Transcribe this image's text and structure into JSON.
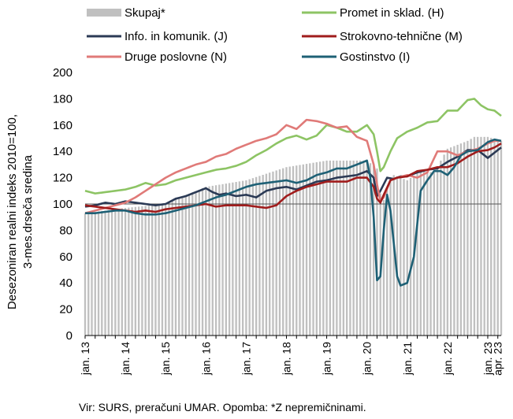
{
  "chart_data": {
    "type": "line",
    "ylabel": [
      "Desezoniran realni indeks 2010=100,",
      "3-mes.drseča sredina"
    ],
    "ylim": [
      0,
      200
    ],
    "yticks": [
      0,
      20,
      40,
      60,
      80,
      100,
      120,
      140,
      160,
      180,
      200
    ],
    "reference_line": 100,
    "x_months": 125,
    "x_start": "2013-01",
    "xtick_labels": [
      {
        "label": "jan. 13",
        "month_index": 0
      },
      {
        "label": "jan. 14",
        "month_index": 12
      },
      {
        "label": "jan. 15",
        "month_index": 24
      },
      {
        "label": "jan. 16",
        "month_index": 36
      },
      {
        "label": "jan. 17",
        "month_index": 48
      },
      {
        "label": "jan. 18",
        "month_index": 60
      },
      {
        "label": "jan. 19",
        "month_index": 72
      },
      {
        "label": "jan. 20",
        "month_index": 84
      },
      {
        "label": "jan. 21",
        "month_index": 96
      },
      {
        "label": "jan. 22",
        "month_index": 108
      },
      {
        "label": "jan. 23",
        "month_index": 120
      },
      {
        "label": "apr. 23",
        "month_index": 123
      }
    ],
    "bars": {
      "name": "Skupaj*",
      "color": "#c0c0c0",
      "anchors": [
        [
          0,
          93
        ],
        [
          12,
          97
        ],
        [
          24,
          100
        ],
        [
          36,
          113
        ],
        [
          48,
          118
        ],
        [
          60,
          128
        ],
        [
          72,
          133
        ],
        [
          84,
          133
        ],
        [
          87,
          127
        ],
        [
          88,
          108
        ],
        [
          89,
          103
        ],
        [
          90,
          112
        ],
        [
          92,
          122
        ],
        [
          96,
          118
        ],
        [
          100,
          125
        ],
        [
          104,
          124
        ],
        [
          108,
          142
        ],
        [
          114,
          148
        ],
        [
          116,
          151
        ],
        [
          120,
          151
        ],
        [
          124,
          148
        ]
      ]
    },
    "series": [
      {
        "name": "Promet in sklad. (H)",
        "color": "#8dc464",
        "anchors": [
          [
            0,
            110
          ],
          [
            3,
            108
          ],
          [
            6,
            109
          ],
          [
            9,
            110
          ],
          [
            12,
            111
          ],
          [
            15,
            113
          ],
          [
            18,
            116
          ],
          [
            21,
            114
          ],
          [
            24,
            115
          ],
          [
            27,
            118
          ],
          [
            30,
            120
          ],
          [
            33,
            122
          ],
          [
            36,
            124
          ],
          [
            39,
            126
          ],
          [
            42,
            127
          ],
          [
            45,
            129
          ],
          [
            48,
            132
          ],
          [
            51,
            137
          ],
          [
            54,
            141
          ],
          [
            57,
            146
          ],
          [
            60,
            150
          ],
          [
            63,
            152
          ],
          [
            66,
            149
          ],
          [
            69,
            152
          ],
          [
            72,
            160
          ],
          [
            75,
            158
          ],
          [
            78,
            155
          ],
          [
            81,
            155
          ],
          [
            84,
            160
          ],
          [
            86,
            153
          ],
          [
            87,
            140
          ],
          [
            88,
            125
          ],
          [
            89,
            128
          ],
          [
            91,
            140
          ],
          [
            93,
            150
          ],
          [
            96,
            155
          ],
          [
            99,
            158
          ],
          [
            102,
            162
          ],
          [
            105,
            163
          ],
          [
            108,
            171
          ],
          [
            111,
            171
          ],
          [
            114,
            179
          ],
          [
            116,
            180
          ],
          [
            118,
            175
          ],
          [
            120,
            172
          ],
          [
            122,
            171
          ],
          [
            124,
            167
          ]
        ]
      },
      {
        "name": "Info. in komunik. (J)",
        "color": "#2b3a55",
        "anchors": [
          [
            0,
            98
          ],
          [
            3,
            99
          ],
          [
            6,
            101
          ],
          [
            9,
            100
          ],
          [
            12,
            102
          ],
          [
            15,
            101
          ],
          [
            18,
            100
          ],
          [
            21,
            99
          ],
          [
            24,
            100
          ],
          [
            27,
            104
          ],
          [
            30,
            106
          ],
          [
            33,
            109
          ],
          [
            36,
            112
          ],
          [
            38,
            109
          ],
          [
            40,
            107
          ],
          [
            42,
            108
          ],
          [
            45,
            106
          ],
          [
            48,
            107
          ],
          [
            51,
            105
          ],
          [
            54,
            110
          ],
          [
            57,
            112
          ],
          [
            60,
            113
          ],
          [
            63,
            111
          ],
          [
            66,
            114
          ],
          [
            69,
            117
          ],
          [
            72,
            118
          ],
          [
            75,
            120
          ],
          [
            78,
            121
          ],
          [
            81,
            122
          ],
          [
            84,
            125
          ],
          [
            86,
            120
          ],
          [
            87,
            106
          ],
          [
            88,
            110
          ],
          [
            90,
            120
          ],
          [
            92,
            119
          ],
          [
            94,
            121
          ],
          [
            96,
            121
          ],
          [
            99,
            124
          ],
          [
            102,
            126
          ],
          [
            105,
            127
          ],
          [
            108,
            132
          ],
          [
            111,
            136
          ],
          [
            114,
            141
          ],
          [
            117,
            141
          ],
          [
            120,
            135
          ],
          [
            122,
            139
          ],
          [
            124,
            143
          ]
        ]
      },
      {
        "name": "Druge poslovne (N)",
        "color": "#e07a78",
        "anchors": [
          [
            0,
            93
          ],
          [
            3,
            95
          ],
          [
            6,
            97
          ],
          [
            9,
            99
          ],
          [
            12,
            101
          ],
          [
            15,
            105
          ],
          [
            18,
            110
          ],
          [
            21,
            115
          ],
          [
            24,
            120
          ],
          [
            27,
            124
          ],
          [
            30,
            127
          ],
          [
            33,
            130
          ],
          [
            36,
            132
          ],
          [
            39,
            136
          ],
          [
            42,
            138
          ],
          [
            45,
            142
          ],
          [
            48,
            145
          ],
          [
            51,
            148
          ],
          [
            54,
            150
          ],
          [
            57,
            153
          ],
          [
            60,
            160
          ],
          [
            63,
            157
          ],
          [
            66,
            164
          ],
          [
            69,
            163
          ],
          [
            72,
            161
          ],
          [
            75,
            158
          ],
          [
            78,
            159
          ],
          [
            81,
            151
          ],
          [
            84,
            148
          ],
          [
            86,
            130
          ],
          [
            87,
            115
          ],
          [
            88,
            102
          ],
          [
            89,
            105
          ],
          [
            91,
            118
          ],
          [
            93,
            120
          ],
          [
            96,
            122
          ],
          [
            99,
            120
          ],
          [
            102,
            124
          ],
          [
            105,
            140
          ],
          [
            108,
            140
          ],
          [
            111,
            137
          ],
          [
            114,
            140
          ],
          [
            117,
            142
          ],
          [
            120,
            146
          ],
          [
            122,
            148
          ],
          [
            124,
            148
          ]
        ]
      },
      {
        "name": "Strokovno-tehnične (M)",
        "color": "#a01c1c",
        "anchors": [
          [
            0,
            99
          ],
          [
            3,
            98
          ],
          [
            6,
            97
          ],
          [
            9,
            96
          ],
          [
            12,
            95
          ],
          [
            15,
            94
          ],
          [
            18,
            95
          ],
          [
            21,
            94
          ],
          [
            24,
            96
          ],
          [
            27,
            97
          ],
          [
            30,
            98
          ],
          [
            33,
            99
          ],
          [
            36,
            100
          ],
          [
            39,
            98
          ],
          [
            42,
            99
          ],
          [
            45,
            99
          ],
          [
            48,
            99
          ],
          [
            51,
            98
          ],
          [
            54,
            97
          ],
          [
            57,
            99
          ],
          [
            60,
            106
          ],
          [
            63,
            110
          ],
          [
            66,
            113
          ],
          [
            69,
            115
          ],
          [
            72,
            117
          ],
          [
            75,
            117
          ],
          [
            78,
            117
          ],
          [
            81,
            120
          ],
          [
            84,
            120
          ],
          [
            86,
            113
          ],
          [
            87,
            104
          ],
          [
            88,
            101
          ],
          [
            89,
            107
          ],
          [
            91,
            118
          ],
          [
            93,
            120
          ],
          [
            96,
            121
          ],
          [
            99,
            125
          ],
          [
            102,
            126
          ],
          [
            105,
            128
          ],
          [
            108,
            128
          ],
          [
            111,
            131
          ],
          [
            114,
            136
          ],
          [
            117,
            140
          ],
          [
            120,
            141
          ],
          [
            122,
            143
          ],
          [
            124,
            146
          ]
        ]
      },
      {
        "name": "Gostinstvo (I)",
        "color": "#1e6075",
        "anchors": [
          [
            0,
            93
          ],
          [
            3,
            93
          ],
          [
            6,
            94
          ],
          [
            9,
            95
          ],
          [
            12,
            95
          ],
          [
            15,
            93
          ],
          [
            18,
            92
          ],
          [
            21,
            92
          ],
          [
            24,
            93
          ],
          [
            27,
            95
          ],
          [
            30,
            97
          ],
          [
            33,
            99
          ],
          [
            36,
            102
          ],
          [
            39,
            105
          ],
          [
            42,
            107
          ],
          [
            45,
            110
          ],
          [
            48,
            113
          ],
          [
            51,
            115
          ],
          [
            54,
            116
          ],
          [
            57,
            117
          ],
          [
            60,
            118
          ],
          [
            63,
            116
          ],
          [
            66,
            118
          ],
          [
            69,
            122
          ],
          [
            72,
            124
          ],
          [
            75,
            127
          ],
          [
            78,
            127
          ],
          [
            81,
            130
          ],
          [
            84,
            133
          ],
          [
            85,
            120
          ],
          [
            86,
            90
          ],
          [
            87,
            42
          ],
          [
            88,
            45
          ],
          [
            89,
            80
          ],
          [
            90,
            107
          ],
          [
            91,
            95
          ],
          [
            92,
            70
          ],
          [
            93,
            45
          ],
          [
            94,
            38
          ],
          [
            96,
            40
          ],
          [
            98,
            60
          ],
          [
            100,
            110
          ],
          [
            102,
            118
          ],
          [
            104,
            125
          ],
          [
            106,
            125
          ],
          [
            108,
            122
          ],
          [
            110,
            128
          ],
          [
            112,
            137
          ],
          [
            114,
            140
          ],
          [
            117,
            141
          ],
          [
            120,
            147
          ],
          [
            122,
            149
          ],
          [
            124,
            148
          ]
        ]
      }
    ],
    "legend": [
      {
        "label": "Skupaj*",
        "kind": "bar",
        "color": "#c0c0c0",
        "col": 0,
        "row": 0
      },
      {
        "label": "Promet in sklad. (H)",
        "kind": "line",
        "color": "#8dc464",
        "col": 1,
        "row": 0
      },
      {
        "label": "Info. in komunik. (J)",
        "kind": "line",
        "color": "#2b3a55",
        "col": 0,
        "row": 1
      },
      {
        "label": "Strokovno-tehnične (M)",
        "kind": "line",
        "color": "#a01c1c",
        "col": 1,
        "row": 1
      },
      {
        "label": "Druge poslovne (N)",
        "kind": "line",
        "color": "#e07a78",
        "col": 0,
        "row": 2
      },
      {
        "label": "Gostinstvo (I)",
        "kind": "line",
        "color": "#1e6075",
        "col": 1,
        "row": 2
      }
    ],
    "source": "Vir: SURS, preračuni UMAR. Opomba: *Z nepremičninami."
  }
}
